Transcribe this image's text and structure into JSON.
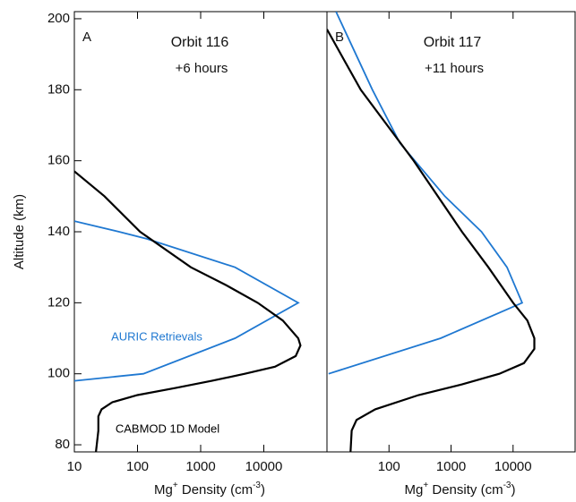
{
  "chart_data": [
    {
      "type": "line",
      "panel": "A",
      "title": "Orbit 116",
      "subtitle": "+6 hours",
      "x_label": [
        "Mg",
        "+",
        " Density (cm",
        "-3",
        ")"
      ],
      "y_label": "Altitude (km)",
      "log_x": true,
      "xlim": [
        10,
        100000
      ],
      "xticks": [
        10,
        100,
        1000,
        10000
      ],
      "ylim": [
        78,
        202
      ],
      "yticks": [
        80,
        100,
        120,
        140,
        160,
        180,
        200
      ],
      "series": [
        {
          "name": "AURIC Retrievals",
          "color": "#1f78d1",
          "x": [
            10,
            51,
            140,
            3500,
            35000,
            3500,
            124,
            10
          ],
          "values": [
            143,
            140,
            138,
            130,
            120,
            110,
            100,
            98
          ]
        },
        {
          "name": "CABMOD 1D Model",
          "color": "#000000",
          "x": [
            10,
            30,
            110,
            700,
            2500,
            8000,
            20000,
            35000,
            38000,
            32000,
            15000,
            5000,
            1500,
            400,
            100,
            40,
            27,
            24,
            24,
            22
          ],
          "values": [
            157,
            150,
            140,
            130,
            125,
            120,
            115,
            110,
            108,
            105,
            102,
            100,
            98,
            96,
            94,
            92,
            90,
            88,
            84,
            78
          ]
        }
      ]
    },
    {
      "type": "line",
      "panel": "B",
      "title": "Orbit 117",
      "subtitle": "+11 hours",
      "x_label": [
        "Mg",
        "+",
        " Density (cm",
        "-3",
        ")"
      ],
      "log_x": true,
      "xlim": [
        10,
        100000
      ],
      "xticks": [
        100,
        1000,
        10000
      ],
      "ylim": [
        78,
        202
      ],
      "series": [
        {
          "color": "#1f78d1",
          "x": [
            14,
            54,
            150,
            795,
            3100,
            8000,
            14000,
            680,
            10.6
          ],
          "values": [
            202,
            180,
            165,
            150,
            140,
            130,
            120,
            110,
            100
          ]
        },
        {
          "color": "#000000",
          "x": [
            10,
            35,
            250,
            1500,
            4000,
            10000,
            17000,
            22000,
            22000,
            15000,
            6000,
            1500,
            300,
            60,
            30,
            25,
            24
          ],
          "values": [
            197,
            180,
            160,
            140,
            130,
            120,
            115,
            110,
            107,
            103,
            100,
            97,
            94,
            90,
            87,
            84,
            78
          ]
        }
      ]
    }
  ]
}
